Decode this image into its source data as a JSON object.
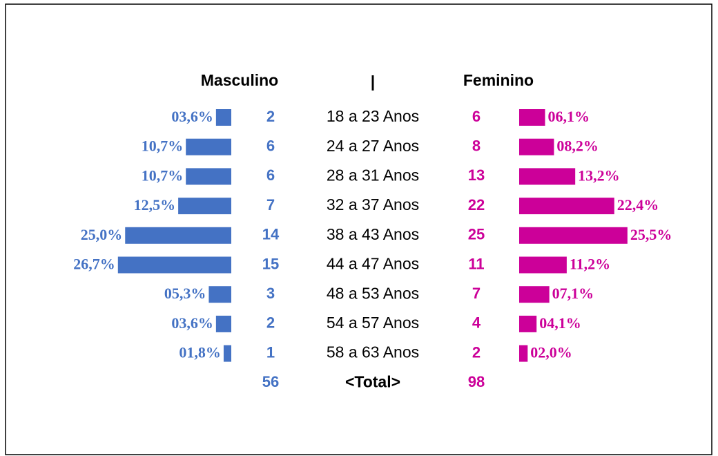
{
  "chart_data": {
    "type": "pyramid",
    "divider": "|",
    "categories": [
      "18 a 23 Anos",
      "24 a 27 Anos",
      "28 a 31 Anos",
      "32 a 37 Anos",
      "38 a 43 Anos",
      "44 a 47 Anos",
      "48 a 53 Anos",
      "54 a 57 Anos",
      "58 a 63 Anos"
    ],
    "series": [
      {
        "name": "Masculino",
        "color": "#4472c4",
        "counts": [
          2,
          6,
          6,
          7,
          14,
          15,
          3,
          2,
          1
        ],
        "values": [
          3.6,
          10.7,
          10.7,
          12.5,
          25.0,
          26.7,
          5.3,
          3.6,
          1.8
        ],
        "value_labels": [
          "03,6%",
          "10,7%",
          "10,7%",
          "12,5%",
          "25,0%",
          "26,7%",
          "05,3%",
          "03,6%",
          "01,8%"
        ],
        "total": 56
      },
      {
        "name": "Feminino",
        "color": "#cc0099",
        "counts": [
          6,
          8,
          13,
          22,
          25,
          11,
          7,
          4,
          2
        ],
        "values": [
          6.1,
          8.2,
          13.2,
          22.4,
          25.5,
          11.2,
          7.1,
          4.1,
          2.0
        ],
        "value_labels": [
          "06,1%",
          "08,2%",
          "13,2%",
          "22,4%",
          "25,5%",
          "11,2%",
          "07,1%",
          "04,1%",
          "02,0%"
        ],
        "total": 98
      }
    ],
    "total_label": "<Total>"
  }
}
